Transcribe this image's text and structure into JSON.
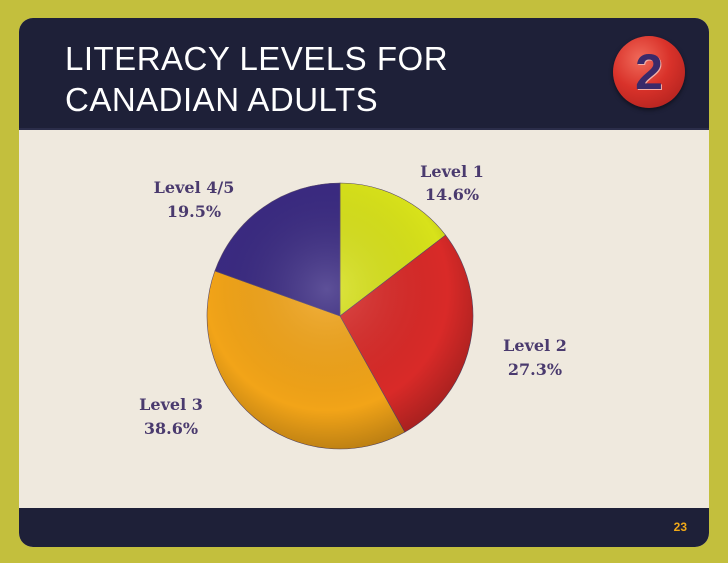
{
  "slide": {
    "title_line1": "LITERACY LEVELS FOR",
    "title_line2": "CANADIAN ADULTS",
    "badge": "2",
    "page_number": "23"
  },
  "chart_data": {
    "type": "pie",
    "title": "LITERACY LEVELS FOR CANADIAN ADULTS",
    "slices": [
      {
        "label": "Level 1",
        "value": 14.6,
        "display": "14.6%",
        "color": "#d8e21a"
      },
      {
        "label": "Level 2",
        "value": 27.3,
        "display": "27.3%",
        "color": "#d92a28"
      },
      {
        "label": "Level 3",
        "value": 38.6,
        "display": "38.6%",
        "color": "#f2a418"
      },
      {
        "label": "Level 4/5",
        "value": 19.5,
        "display": "19.5%",
        "color": "#3a2a82"
      }
    ]
  }
}
